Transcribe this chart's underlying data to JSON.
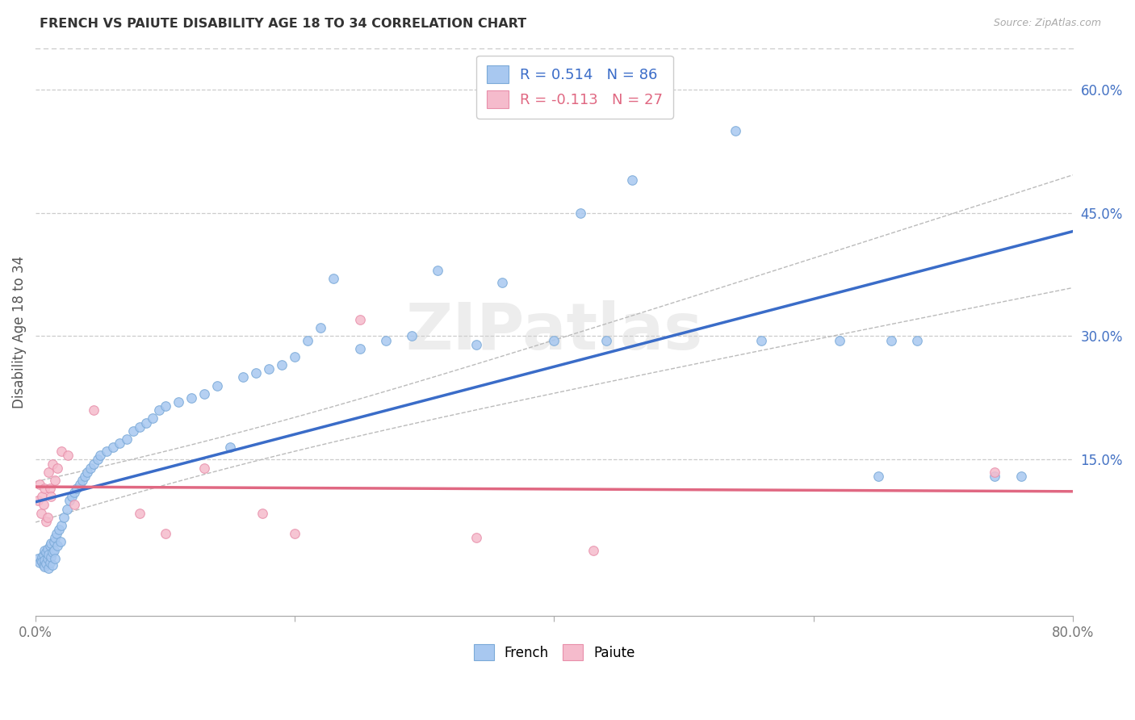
{
  "title": "FRENCH VS PAIUTE DISABILITY AGE 18 TO 34 CORRELATION CHART",
  "source": "Source: ZipAtlas.com",
  "ylabel": "Disability Age 18 to 34",
  "xlim": [
    0.0,
    0.8
  ],
  "ylim": [
    -0.04,
    0.65
  ],
  "xticks": [
    0.0,
    0.2,
    0.4,
    0.6,
    0.8
  ],
  "xticklabels": [
    "0.0%",
    "",
    "",
    "",
    "80.0%"
  ],
  "yticks_right": [
    0.15,
    0.3,
    0.45,
    0.6
  ],
  "french_R": 0.514,
  "french_N": 86,
  "paiute_R": -0.113,
  "paiute_N": 27,
  "french_dot_color": "#A8C8F0",
  "french_dot_edge": "#7BAAD8",
  "french_line_color": "#3A6CC8",
  "paiute_dot_color": "#F5BBCC",
  "paiute_dot_edge": "#E88FAA",
  "paiute_line_color": "#E06882",
  "ci_color": "#BBBBBB",
  "background_color": "#FFFFFF",
  "grid_color": "#CCCCCC",
  "watermark": "ZIPatlas",
  "french_x": [
    0.002,
    0.003,
    0.004,
    0.005,
    0.005,
    0.006,
    0.006,
    0.007,
    0.007,
    0.007,
    0.008,
    0.008,
    0.009,
    0.009,
    0.01,
    0.01,
    0.011,
    0.011,
    0.012,
    0.012,
    0.013,
    0.013,
    0.014,
    0.014,
    0.015,
    0.015,
    0.016,
    0.017,
    0.018,
    0.019,
    0.02,
    0.022,
    0.024,
    0.026,
    0.028,
    0.03,
    0.032,
    0.034,
    0.036,
    0.038,
    0.04,
    0.042,
    0.045,
    0.048,
    0.05,
    0.055,
    0.06,
    0.065,
    0.07,
    0.075,
    0.08,
    0.085,
    0.09,
    0.095,
    0.1,
    0.11,
    0.12,
    0.13,
    0.14,
    0.15,
    0.16,
    0.17,
    0.18,
    0.19,
    0.2,
    0.21,
    0.22,
    0.23,
    0.25,
    0.27,
    0.29,
    0.31,
    0.34,
    0.36,
    0.4,
    0.42,
    0.44,
    0.46,
    0.54,
    0.56,
    0.62,
    0.65,
    0.66,
    0.68,
    0.74,
    0.76
  ],
  "french_y": [
    0.03,
    0.025,
    0.028,
    0.032,
    0.026,
    0.035,
    0.022,
    0.04,
    0.028,
    0.02,
    0.038,
    0.024,
    0.042,
    0.03,
    0.035,
    0.018,
    0.045,
    0.025,
    0.048,
    0.032,
    0.038,
    0.022,
    0.05,
    0.04,
    0.055,
    0.03,
    0.06,
    0.045,
    0.065,
    0.05,
    0.07,
    0.08,
    0.09,
    0.1,
    0.105,
    0.11,
    0.115,
    0.12,
    0.125,
    0.13,
    0.135,
    0.14,
    0.145,
    0.15,
    0.155,
    0.16,
    0.165,
    0.17,
    0.175,
    0.185,
    0.19,
    0.195,
    0.2,
    0.21,
    0.215,
    0.22,
    0.225,
    0.23,
    0.24,
    0.165,
    0.25,
    0.255,
    0.26,
    0.265,
    0.275,
    0.295,
    0.31,
    0.37,
    0.285,
    0.295,
    0.3,
    0.38,
    0.29,
    0.365,
    0.295,
    0.45,
    0.295,
    0.49,
    0.55,
    0.295,
    0.295,
    0.13,
    0.295,
    0.295,
    0.13,
    0.13
  ],
  "paiute_x": [
    0.002,
    0.003,
    0.004,
    0.005,
    0.006,
    0.007,
    0.008,
    0.009,
    0.01,
    0.011,
    0.012,
    0.013,
    0.015,
    0.017,
    0.02,
    0.025,
    0.03,
    0.045,
    0.08,
    0.1,
    0.13,
    0.175,
    0.2,
    0.25,
    0.34,
    0.43,
    0.74
  ],
  "paiute_y": [
    0.1,
    0.12,
    0.085,
    0.105,
    0.095,
    0.115,
    0.075,
    0.08,
    0.135,
    0.115,
    0.105,
    0.145,
    0.125,
    0.14,
    0.16,
    0.155,
    0.095,
    0.21,
    0.085,
    0.06,
    0.14,
    0.085,
    0.06,
    0.32,
    0.055,
    0.04,
    0.135
  ]
}
